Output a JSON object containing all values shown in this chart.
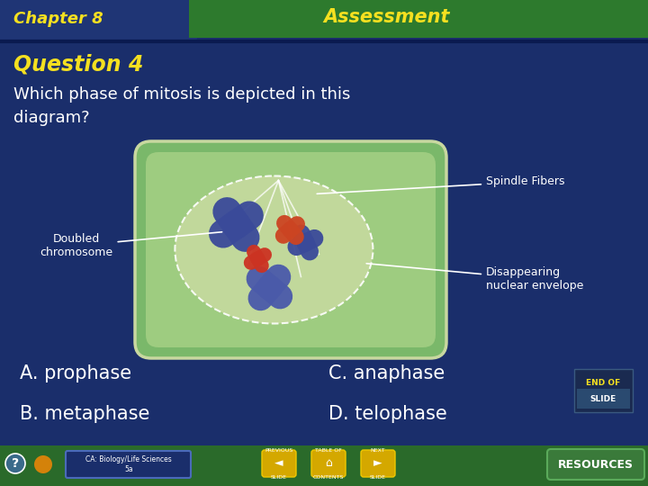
{
  "bg_color": "#1a2e6b",
  "header_left_color": "#1a2e6b",
  "header_right_color": "#2d7a2d",
  "chapter_text": "Chapter 8",
  "chapter_color": "#f5e020",
  "assessment_text": "Assessment",
  "assessment_color": "#f5e020",
  "question_text": "Question 4",
  "question_color": "#f5e020",
  "body_text": "Which phase of mitosis is depicted in this\ndiagram?",
  "body_color": "#ffffff",
  "label_spindle": "Spindle Fibers",
  "label_doubled": "Doubled\nchromosome",
  "label_disappearing": "Disappearing\nnuclear envelope",
  "option_A": "A. prophase",
  "option_B": "B. metaphase",
  "option_C": "C. anaphase",
  "option_D": "D. telophase",
  "option_color": "#ffffff",
  "footer_color": "#2a6a2a",
  "label_color": "#ffffff",
  "end_of_slide_color": "#f5e020",
  "resources_btn_color": "#3a8a3a"
}
